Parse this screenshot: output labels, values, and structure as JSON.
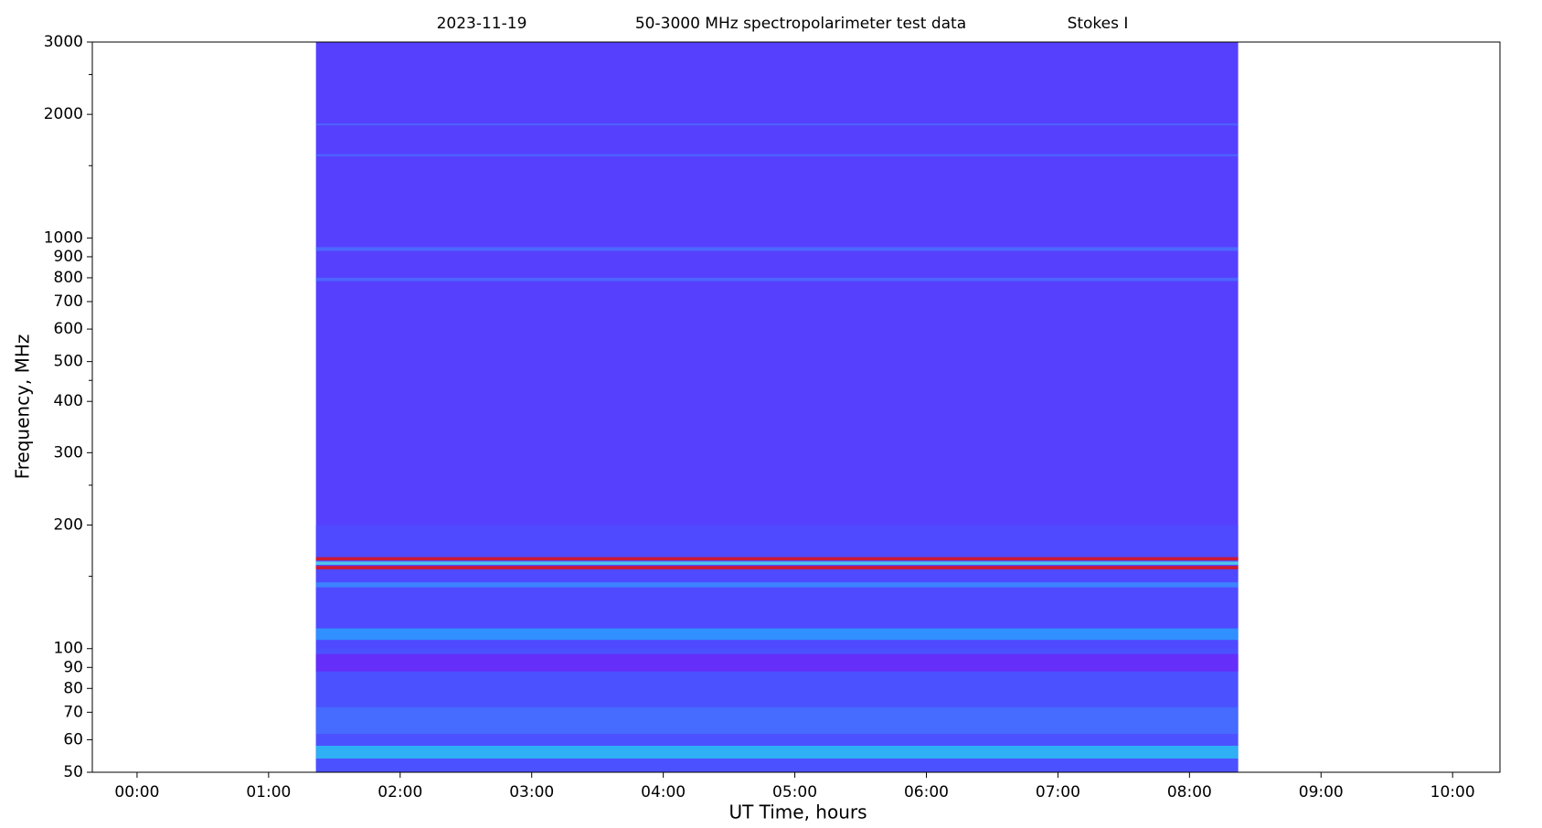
{
  "chart_data": {
    "type": "spectrogram",
    "title": [
      "2023-11-19",
      "50-3000 MHz spectropolarimeter test data",
      "Stokes I"
    ],
    "xlabel": "UT Time, hours",
    "ylabel": "Frequency, MHz",
    "xlim": [
      -0.34,
      10.36
    ],
    "xticks": [
      {
        "value": 0,
        "label": "00:00"
      },
      {
        "value": 1,
        "label": "01:00"
      },
      {
        "value": 2,
        "label": "02:00"
      },
      {
        "value": 3,
        "label": "03:00"
      },
      {
        "value": 4,
        "label": "04:00"
      },
      {
        "value": 5,
        "label": "05:00"
      },
      {
        "value": 6,
        "label": "06:00"
      },
      {
        "value": 7,
        "label": "07:00"
      },
      {
        "value": 8,
        "label": "08:00"
      },
      {
        "value": 9,
        "label": "09:00"
      },
      {
        "value": 10,
        "label": "10:00"
      }
    ],
    "ylim": [
      50,
      3000
    ],
    "log_y": true,
    "yticks": [
      50,
      60,
      70,
      80,
      90,
      100,
      200,
      300,
      400,
      500,
      600,
      700,
      800,
      900,
      1000,
      2000,
      3000
    ],
    "yminorticks": [
      150,
      250,
      450,
      1500,
      2500
    ],
    "data_x_range": [
      1.36,
      8.37
    ],
    "background_color": "#5640fe",
    "bands": [
      {
        "f0": 50,
        "f1": 100,
        "color": "#4a55ff"
      },
      {
        "f0": 100,
        "f1": 200,
        "color": "#4d4cff"
      },
      {
        "f0": 54,
        "f1": 58,
        "color": "#2ac0f2"
      },
      {
        "f0": 62,
        "f1": 72,
        "color": "#4470ff"
      },
      {
        "f0": 88,
        "f1": 97,
        "color": "#6a28f8"
      },
      {
        "f0": 105,
        "f1": 112,
        "color": "#2a9cff"
      },
      {
        "f0": 141,
        "f1": 145,
        "color": "#3a8cff"
      },
      {
        "f0": 156,
        "f1": 159,
        "color": "#e01010"
      },
      {
        "f0": 160,
        "f1": 163,
        "color": "#50d8e8"
      },
      {
        "f0": 164,
        "f1": 167,
        "color": "#e01010"
      },
      {
        "f0": 785,
        "f1": 800,
        "color": "#4a6cff"
      },
      {
        "f0": 930,
        "f1": 950,
        "color": "#4a70ff"
      },
      {
        "f0": 1580,
        "f1": 1600,
        "color": "#4c68ff"
      },
      {
        "f0": 1880,
        "f1": 1900,
        "color": "#4c68ff"
      }
    ]
  }
}
